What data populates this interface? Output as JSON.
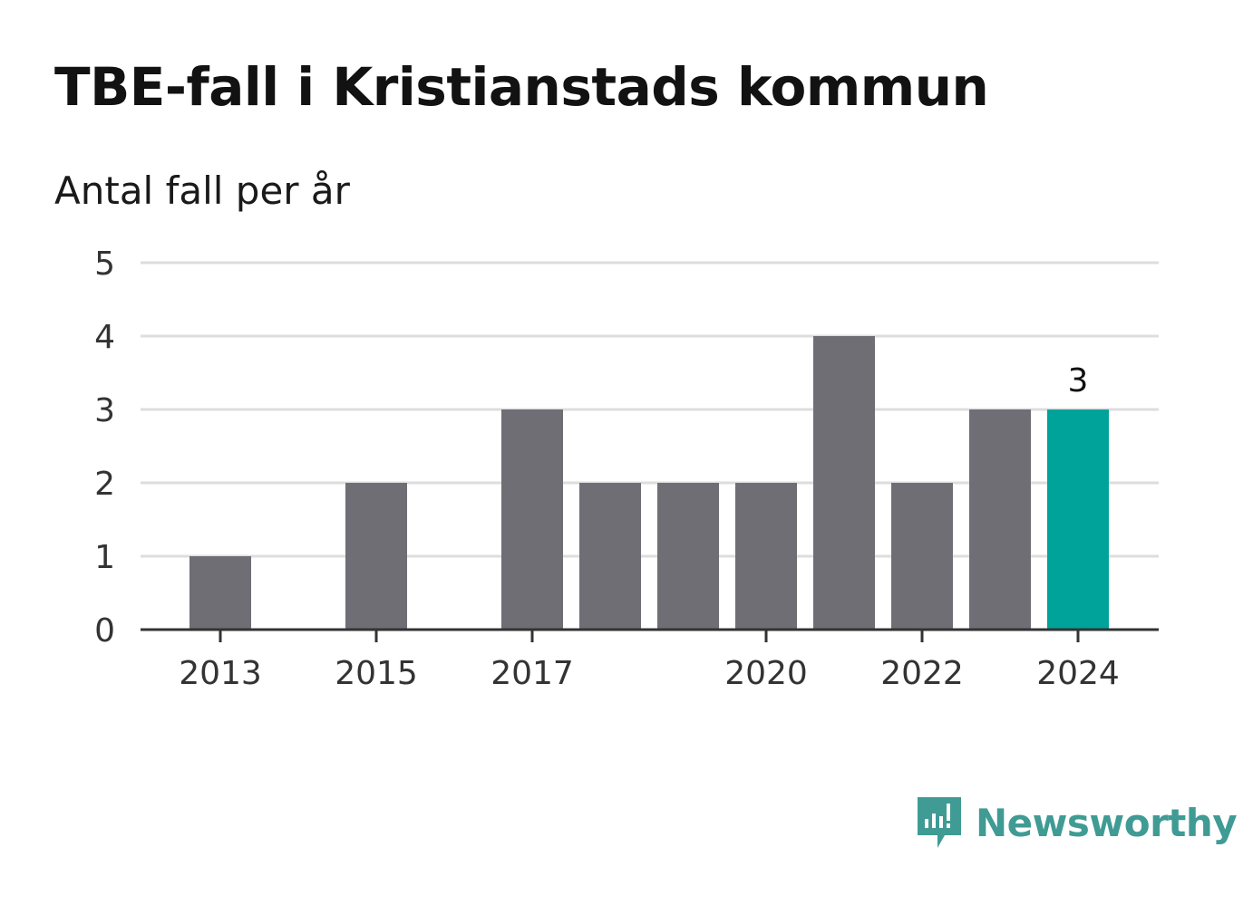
{
  "title": "TBE-fall i Kristianstads kommun",
  "subtitle": "Antal fall per år",
  "brand": {
    "name": "Newsworthy",
    "icon": "newsworthy-logo-icon",
    "color": "#3f9b94"
  },
  "colors": {
    "bar": "#6f6e74",
    "highlight": "#00a39a",
    "grid": "#dddddd",
    "axis": "#333333"
  },
  "chart_data": {
    "type": "bar",
    "title": "TBE-fall i Kristianstads kommun",
    "subtitle": "Antal fall per år",
    "xlabel": "",
    "ylabel": "",
    "ylim": [
      0,
      5
    ],
    "yticks": [
      0,
      1,
      2,
      3,
      4,
      5
    ],
    "grid": true,
    "legend": "none",
    "categories": [
      "2013",
      "2014",
      "2015",
      "2016",
      "2017",
      "2018",
      "2019",
      "2020",
      "2021",
      "2022",
      "2023",
      "2024"
    ],
    "xtick_labels": [
      "2013",
      "2015",
      "2017",
      "2020",
      "2022",
      "2024"
    ],
    "values": [
      1,
      0,
      2,
      0,
      3,
      2,
      2,
      2,
      4,
      2,
      3,
      3
    ],
    "highlight": {
      "category": "2024",
      "value": 3,
      "label": "3"
    }
  }
}
